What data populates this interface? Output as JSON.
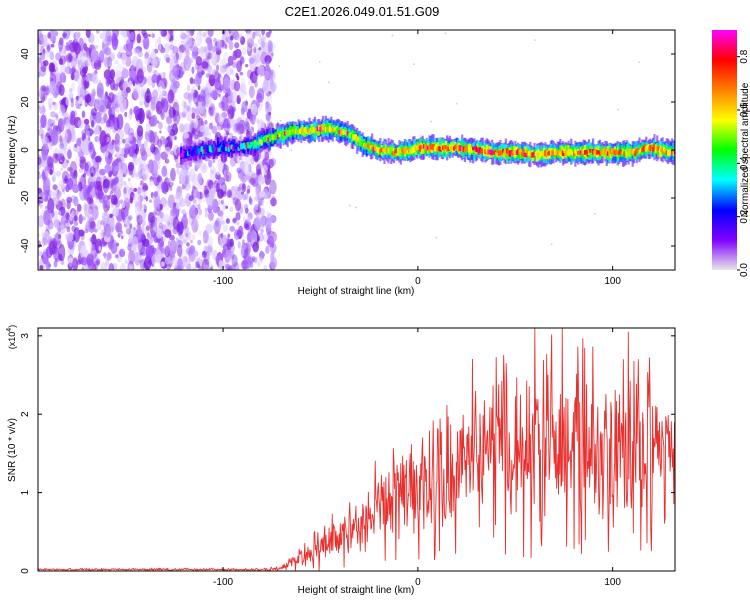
{
  "page": {
    "title": "C2E1.2026.049.01.51.G09"
  },
  "colorbar": {
    "label": "Normalized spectral amplitude",
    "ticks": [
      "0.0",
      "0.2",
      "0.4",
      "0.6",
      "0.8"
    ],
    "tick_values": [
      0.0,
      0.2,
      0.4,
      0.6,
      0.8
    ],
    "range": [
      0,
      0.9
    ],
    "stops": [
      "#e8e8e8",
      "#8000ff",
      "#0000ff",
      "#00ffff",
      "#00ff00",
      "#ffff00",
      "#ff8000",
      "#ff0000",
      "#ff00ff"
    ]
  },
  "chart_data": [
    {
      "type": "heatmap",
      "title": "C2E1.2026.049.01.51.G09",
      "xlabel": "Height of straight line (km)",
      "ylabel": "Frequency (Hz)",
      "xlim": [
        -195,
        132
      ],
      "ylim": [
        -50,
        50
      ],
      "x_ticks": [
        -100,
        0,
        100
      ],
      "x_tick_labels": [
        "-100",
        "0",
        "100"
      ],
      "y_ticks": [
        -40,
        -20,
        0,
        20,
        40
      ],
      "y_tick_labels": [
        "-40",
        "-20",
        "0",
        "20",
        "40"
      ],
      "color_label": "Normalized spectral amplitude",
      "noise_region": {
        "x_range": [
          -195,
          -82
        ],
        "y_range": [
          -50,
          50
        ],
        "amplitude_range": [
          0.0,
          0.15
        ]
      },
      "track": {
        "x": [
          -122,
          -110,
          -100,
          -92,
          -86,
          -80,
          -72,
          -64,
          -56,
          -48,
          -40,
          -34,
          -28,
          -20,
          -12,
          -4,
          0,
          10,
          20,
          30,
          40,
          50,
          60,
          70,
          80,
          90,
          100,
          110,
          118,
          124,
          132
        ],
        "freq": [
          -2,
          0,
          1,
          1,
          2,
          4,
          6,
          8,
          8,
          9,
          8,
          6,
          2,
          0,
          -1,
          0,
          1,
          1,
          1,
          0,
          -1,
          -1,
          -2,
          -1,
          -1,
          -1,
          -1,
          -1,
          1,
          0,
          -1
        ],
        "amplitude": [
          0.15,
          0.22,
          0.28,
          0.18,
          0.35,
          0.42,
          0.48,
          0.52,
          0.55,
          0.55,
          0.52,
          0.5,
          0.52,
          0.55,
          0.58,
          0.6,
          0.62,
          0.62,
          0.6,
          0.62,
          0.6,
          0.62,
          0.6,
          0.62,
          0.6,
          0.62,
          0.6,
          0.58,
          0.6,
          0.58,
          0.56
        ]
      }
    },
    {
      "type": "line",
      "xlabel": "Height of straight line (km)",
      "ylabel": "SNR (10 * v/v)",
      "y_multiplier": "(x10",
      "y_multiplier_exp": "4",
      "y_multiplier_close": ")",
      "xlim": [
        -195,
        132
      ],
      "ylim": [
        0,
        3.1
      ],
      "x_ticks": [
        -100,
        0,
        100
      ],
      "x_tick_labels": [
        "-100",
        "0",
        "100"
      ],
      "y_ticks": [
        0,
        1,
        2,
        3
      ],
      "y_tick_labels": [
        "0",
        "1",
        "2",
        "3"
      ],
      "color": "#e8312f",
      "series": [
        {
          "name": "SNR",
          "envelope_x": [
            -195,
            -80,
            -70,
            -60,
            -50,
            -40,
            -30,
            -20,
            -10,
            0,
            10,
            20,
            30,
            40,
            50,
            60,
            70,
            80,
            90,
            100,
            110,
            120,
            132
          ],
          "envelope_mean": [
            0.02,
            0.02,
            0.04,
            0.2,
            0.3,
            0.45,
            0.6,
            0.8,
            0.95,
            1.05,
            1.15,
            1.3,
            1.4,
            1.5,
            1.55,
            1.6,
            1.6,
            1.55,
            1.5,
            1.5,
            1.45,
            1.5,
            1.45
          ],
          "envelope_spread": [
            0.01,
            0.01,
            0.03,
            0.12,
            0.18,
            0.25,
            0.32,
            0.4,
            0.5,
            0.55,
            0.6,
            0.65,
            0.7,
            0.75,
            0.8,
            0.85,
            0.85,
            0.85,
            0.85,
            0.8,
            0.8,
            0.75,
            0.7
          ],
          "peak_points": [
            [
              60,
              3.1
            ],
            [
              74,
              3.1
            ],
            [
              108,
              3.05
            ],
            [
              44,
              2.75
            ],
            [
              28,
              2.7
            ]
          ]
        }
      ]
    }
  ]
}
